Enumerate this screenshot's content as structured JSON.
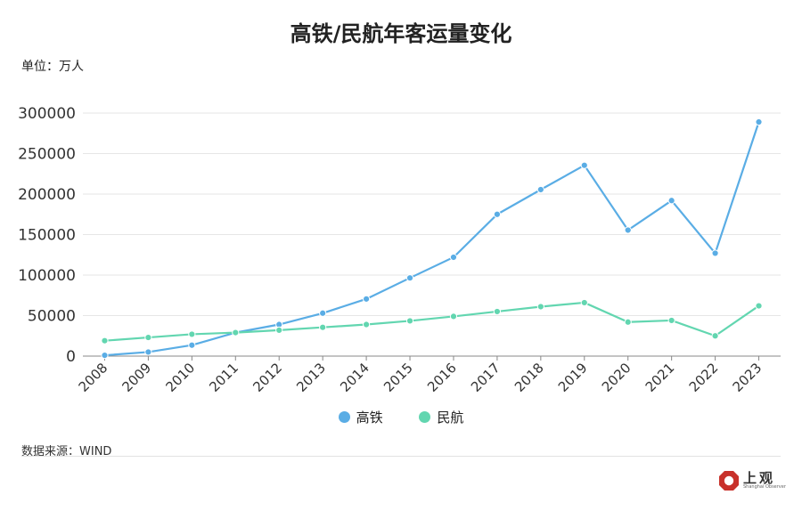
{
  "chart_data": {
    "type": "line",
    "title": "高铁/民航年客运量变化",
    "unit_label": "单位：万人",
    "x": [
      "2008",
      "2009",
      "2010",
      "2011",
      "2012",
      "2013",
      "2014",
      "2015",
      "2016",
      "2017",
      "2018",
      "2019",
      "2020",
      "2021",
      "2022",
      "2023"
    ],
    "series": [
      {
        "name": "高铁",
        "color": "#5aade5",
        "values": [
          1000,
          5000,
          13500,
          29000,
          39000,
          53000,
          70500,
          96500,
          122000,
          175000,
          205500,
          235500,
          155500,
          192000,
          127000,
          289000
        ]
      },
      {
        "name": "民航",
        "color": "#62d6b0",
        "values": [
          19000,
          23000,
          27000,
          29000,
          32000,
          35500,
          39000,
          43500,
          49000,
          55000,
          61000,
          66000,
          42000,
          44000,
          25000,
          62000
        ]
      }
    ],
    "yticks": [
      0,
      50000,
      100000,
      150000,
      200000,
      250000,
      300000
    ],
    "ylim": [
      0,
      300000
    ],
    "grid": true,
    "legend_position": "bottom",
    "source": "数据来源：WIND"
  },
  "brand": {
    "name": "上观",
    "sub": "Shanghai Observer",
    "color": "#c8312b"
  }
}
